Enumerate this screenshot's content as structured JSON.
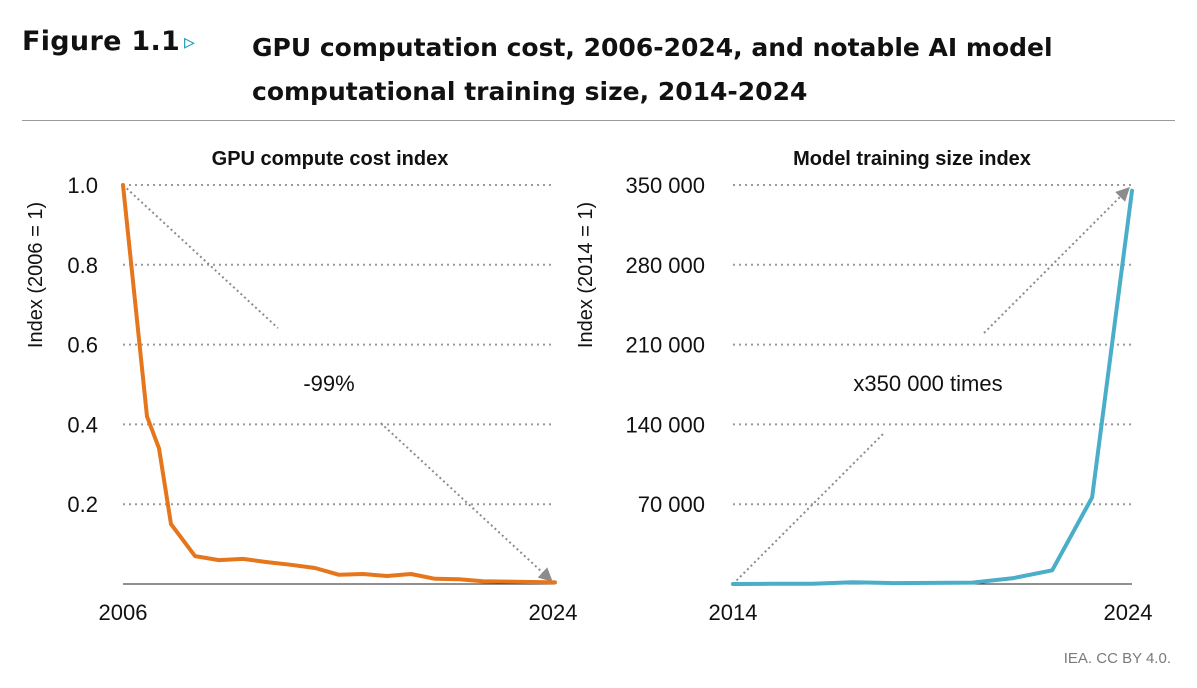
{
  "figure": {
    "label": "Figure 1.1",
    "arrow": "▹",
    "title_line1": "GPU computation cost, 2006-2024, and notable AI model",
    "title_line2": "computational training size, 2014-2024"
  },
  "credit": "IEA. CC BY 4.0.",
  "colors": {
    "gpu_line": "#e5761b",
    "model_line": "#4aaec8",
    "grid": "#9a9a9a",
    "annotation": "#8c8c8c"
  },
  "chart_data": [
    {
      "type": "line",
      "title": "GPU compute cost index",
      "ylabel": "Index (2006 = 1)",
      "xlabel": "",
      "x_ticks": [
        "2006",
        "2024"
      ],
      "y_ticks": [
        {
          "value": 1.0,
          "label": "1.0"
        },
        {
          "value": 0.8,
          "label": "0.8"
        },
        {
          "value": 0.6,
          "label": "0.6"
        },
        {
          "value": 0.4,
          "label": "0.4"
        },
        {
          "value": 0.2,
          "label": "0.2"
        }
      ],
      "xlim": [
        2006,
        2024
      ],
      "ylim": [
        0,
        1.0
      ],
      "grid": true,
      "series": [
        {
          "x": [
            2006,
            2007,
            2007.5,
            2008,
            2009,
            2010,
            2011,
            2012,
            2013,
            2014,
            2015,
            2016,
            2017,
            2018,
            2019,
            2020,
            2021,
            2022,
            2023,
            2024
          ],
          "values": [
            1.0,
            0.42,
            0.34,
            0.15,
            0.07,
            0.06,
            0.063,
            0.055,
            0.048,
            0.04,
            0.023,
            0.025,
            0.02,
            0.025,
            0.013,
            0.012,
            0.007,
            0.006,
            0.005,
            0.004
          ]
        }
      ],
      "annotation": {
        "text": "-99%",
        "from": [
          2006,
          1.0
        ],
        "to": [
          2024,
          0.0
        ]
      }
    },
    {
      "type": "line",
      "title": "Model training size index",
      "ylabel": "Index (2014 = 1)",
      "xlabel": "",
      "x_ticks": [
        "2014",
        "2024"
      ],
      "y_ticks": [
        {
          "value": 350000,
          "label": "350 000"
        },
        {
          "value": 280000,
          "label": "280 000"
        },
        {
          "value": 210000,
          "label": "210 000"
        },
        {
          "value": 140000,
          "label": "140 000"
        },
        {
          "value": 70000,
          "label": "70 000"
        }
      ],
      "xlim": [
        2014,
        2024
      ],
      "ylim": [
        0,
        350000
      ],
      "grid": true,
      "series": [
        {
          "x": [
            2014,
            2015,
            2016,
            2017,
            2018,
            2019,
            2020,
            2021,
            2022,
            2023,
            2024
          ],
          "values": [
            1,
            200,
            300,
            1500,
            800,
            1000,
            1200,
            5000,
            12000,
            76000,
            345000
          ]
        }
      ],
      "annotation": {
        "text": "x350 000 times",
        "from": [
          2014,
          0
        ],
        "to": [
          2024,
          350000
        ]
      }
    }
  ]
}
